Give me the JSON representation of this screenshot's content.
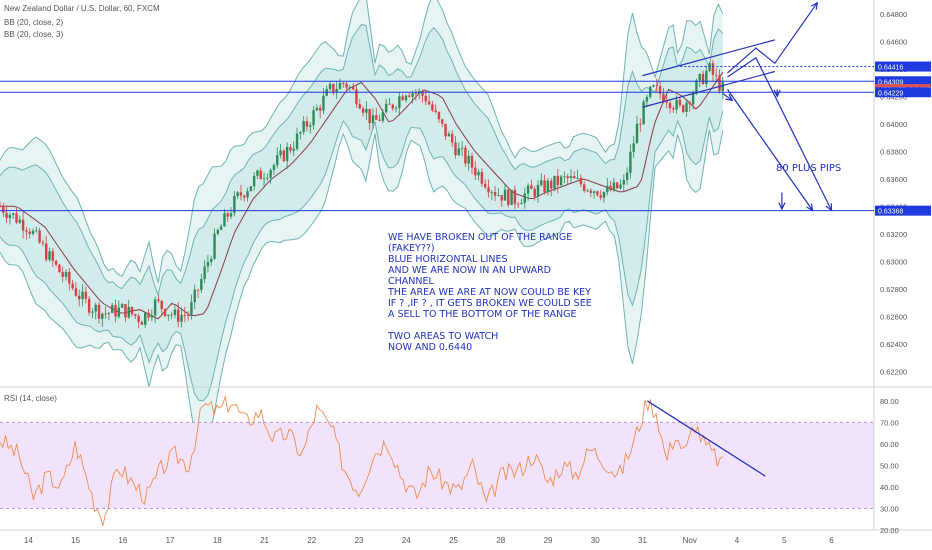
{
  "header": {
    "symbol_line": "New Zealand Dollar / U.S. Dollar, 60, FXCM",
    "bb1": "BB (20, close, 2)",
    "bb2": "BB (20, close, 3)",
    "rsi": "RSI (14, close)"
  },
  "colors": {
    "candle_up": "#2e8b57",
    "candle_down": "#d64040",
    "band": "#6fb3b3",
    "band_fill": "#b9e0df",
    "mid": "#8b3a4a",
    "rsi_line": "#f08a4b",
    "rsi_fill": "#f1e3fb",
    "annotation": "#2233bb",
    "horizontal": "#1f39e0"
  },
  "chart_data": {
    "type": "line",
    "price": {
      "ylim": [
        0.621,
        0.649
      ],
      "tick_labels": [
        "0.64800",
        "0.64600",
        "0.64400",
        "0.64200",
        "0.64000",
        "0.63800",
        "0.63600",
        "0.63400",
        "0.63200",
        "0.63000",
        "0.62800",
        "0.62600",
        "0.62400",
        "0.62200"
      ],
      "tick_values": [
        0.648,
        0.646,
        0.644,
        0.642,
        0.64,
        0.638,
        0.636,
        0.634,
        0.632,
        0.63,
        0.628,
        0.626,
        0.624,
        0.622
      ],
      "horizontal_levels": [
        0.64309,
        0.64229,
        0.63368
      ],
      "price_tags": [
        {
          "label": "0.64416",
          "value": 0.64416,
          "color": "#1f39e0"
        },
        {
          "label": "0.64309",
          "value": 0.64309,
          "color": "#1f39e0"
        },
        {
          "label": "NZDUSD",
          "value": 0.64252,
          "color": "#e05050",
          "text": "0.64252"
        },
        {
          "label": "0.64229",
          "value": 0.64229,
          "color": "#1f39e0"
        },
        {
          "label": "0.63368",
          "value": 0.63368,
          "color": "#1f39e0"
        }
      ],
      "close_path": [
        [
          0,
          0.634
        ],
        [
          0.6,
          0.6325
        ],
        [
          1.2,
          0.6295
        ],
        [
          1.8,
          0.627
        ],
        [
          2.2,
          0.6262
        ],
        [
          2.6,
          0.6265
        ],
        [
          3.0,
          0.6258
        ],
        [
          3.3,
          0.627
        ],
        [
          3.7,
          0.626
        ],
        [
          4.0,
          0.6262
        ],
        [
          4.3,
          0.629
        ],
        [
          4.6,
          0.632
        ],
        [
          5.0,
          0.6345
        ],
        [
          5.4,
          0.636
        ],
        [
          5.8,
          0.637
        ],
        [
          6.2,
          0.6385
        ],
        [
          6.6,
          0.6405
        ],
        [
          7.0,
          0.6425
        ],
        [
          7.3,
          0.643
        ],
        [
          7.6,
          0.6418
        ],
        [
          7.9,
          0.64
        ],
        [
          8.2,
          0.641
        ],
        [
          8.6,
          0.6425
        ],
        [
          9.0,
          0.642
        ],
        [
          9.3,
          0.64
        ],
        [
          9.7,
          0.638
        ],
        [
          10.1,
          0.6365
        ],
        [
          10.5,
          0.635
        ],
        [
          10.9,
          0.6345
        ],
        [
          11.2,
          0.635
        ],
        [
          11.6,
          0.6355
        ],
        [
          12.0,
          0.636
        ],
        [
          12.4,
          0.6355
        ],
        [
          12.8,
          0.635
        ],
        [
          13.2,
          0.6355
        ],
        [
          13.5,
          0.64
        ],
        [
          13.8,
          0.6425
        ],
        [
          14.1,
          0.642
        ],
        [
          14.4,
          0.641
        ],
        [
          14.7,
          0.6425
        ],
        [
          15.0,
          0.644
        ],
        [
          15.2,
          0.643
        ],
        [
          15.3,
          0.6425
        ]
      ]
    },
    "rsi": {
      "ylim": [
        20,
        85
      ],
      "tick_labels": [
        "80.00",
        "70.00",
        "60.00",
        "50.00",
        "40.00",
        "30.00",
        "20.00"
      ],
      "tick_values": [
        80,
        70,
        60,
        50,
        40,
        30,
        20
      ],
      "overbought": 70,
      "oversold": 30,
      "path": [
        [
          0,
          62
        ],
        [
          0.4,
          55
        ],
        [
          0.7,
          35
        ],
        [
          1.0,
          45
        ],
        [
          1.3,
          40
        ],
        [
          1.6,
          60
        ],
        [
          2.0,
          33
        ],
        [
          2.2,
          25
        ],
        [
          2.5,
          50
        ],
        [
          2.8,
          42
        ],
        [
          3.1,
          35
        ],
        [
          3.4,
          48
        ],
        [
          3.7,
          55
        ],
        [
          4.0,
          50
        ],
        [
          4.3,
          78
        ],
        [
          4.6,
          75
        ],
        [
          4.9,
          80
        ],
        [
          5.2,
          70
        ],
        [
          5.5,
          75
        ],
        [
          5.8,
          62
        ],
        [
          6.1,
          65
        ],
        [
          6.4,
          55
        ],
        [
          6.7,
          76
        ],
        [
          7.0,
          68
        ],
        [
          7.3,
          48
        ],
        [
          7.6,
          38
        ],
        [
          7.9,
          55
        ],
        [
          8.2,
          62
        ],
        [
          8.5,
          45
        ],
        [
          8.8,
          35
        ],
        [
          9.1,
          48
        ],
        [
          9.4,
          42
        ],
        [
          9.7,
          38
        ],
        [
          10.0,
          50
        ],
        [
          10.3,
          32
        ],
        [
          10.6,
          45
        ],
        [
          11.0,
          48
        ],
        [
          11.3,
          55
        ],
        [
          11.6,
          42
        ],
        [
          11.9,
          50
        ],
        [
          12.2,
          46
        ],
        [
          12.5,
          58
        ],
        [
          12.8,
          52
        ],
        [
          13.1,
          45
        ],
        [
          13.4,
          60
        ],
        [
          13.7,
          80
        ],
        [
          13.9,
          75
        ],
        [
          14.1,
          52
        ],
        [
          14.3,
          65
        ],
        [
          14.5,
          55
        ],
        [
          14.7,
          70
        ],
        [
          14.9,
          60
        ],
        [
          15.1,
          55
        ],
        [
          15.3,
          50
        ]
      ],
      "trendline": [
        [
          13.7,
          80
        ],
        [
          16.2,
          45
        ]
      ]
    },
    "x_tick_labels": [
      "14",
      "15",
      "16",
      "17",
      "18",
      "21",
      "22",
      "23",
      "24",
      "25",
      "28",
      "29",
      "30",
      "31",
      "Nov",
      "4",
      "5",
      "6"
    ],
    "x_tick_positions": [
      0.6,
      1.6,
      2.6,
      3.6,
      4.6,
      5.6,
      6.6,
      7.6,
      8.6,
      9.6,
      10.6,
      11.6,
      12.6,
      13.6,
      14.6,
      15.6,
      16.6,
      17.6
    ],
    "xlim": [
      0,
      18.5
    ]
  },
  "annotations": {
    "main_text": [
      "WE HAVE BROKEN OUT OF THE RANGE",
      "(FAKEY??)",
      "BLUE HORIZONTAL LINES",
      "AND WE ARE NOW IN AN UPWARD",
      "CHANNEL",
      "THE AREA WE ARE AT NOW COULD BE KEY",
      "IF ? ,IF ? , IT GETS BROKEN WE COULD SEE",
      "A SELL TO THE BOTTOM OF THE RANGE",
      "",
      "TWO AREAS TO WATCH",
      "NOW AND 0.6440"
    ],
    "pips": "80 PLUS PIPS"
  }
}
